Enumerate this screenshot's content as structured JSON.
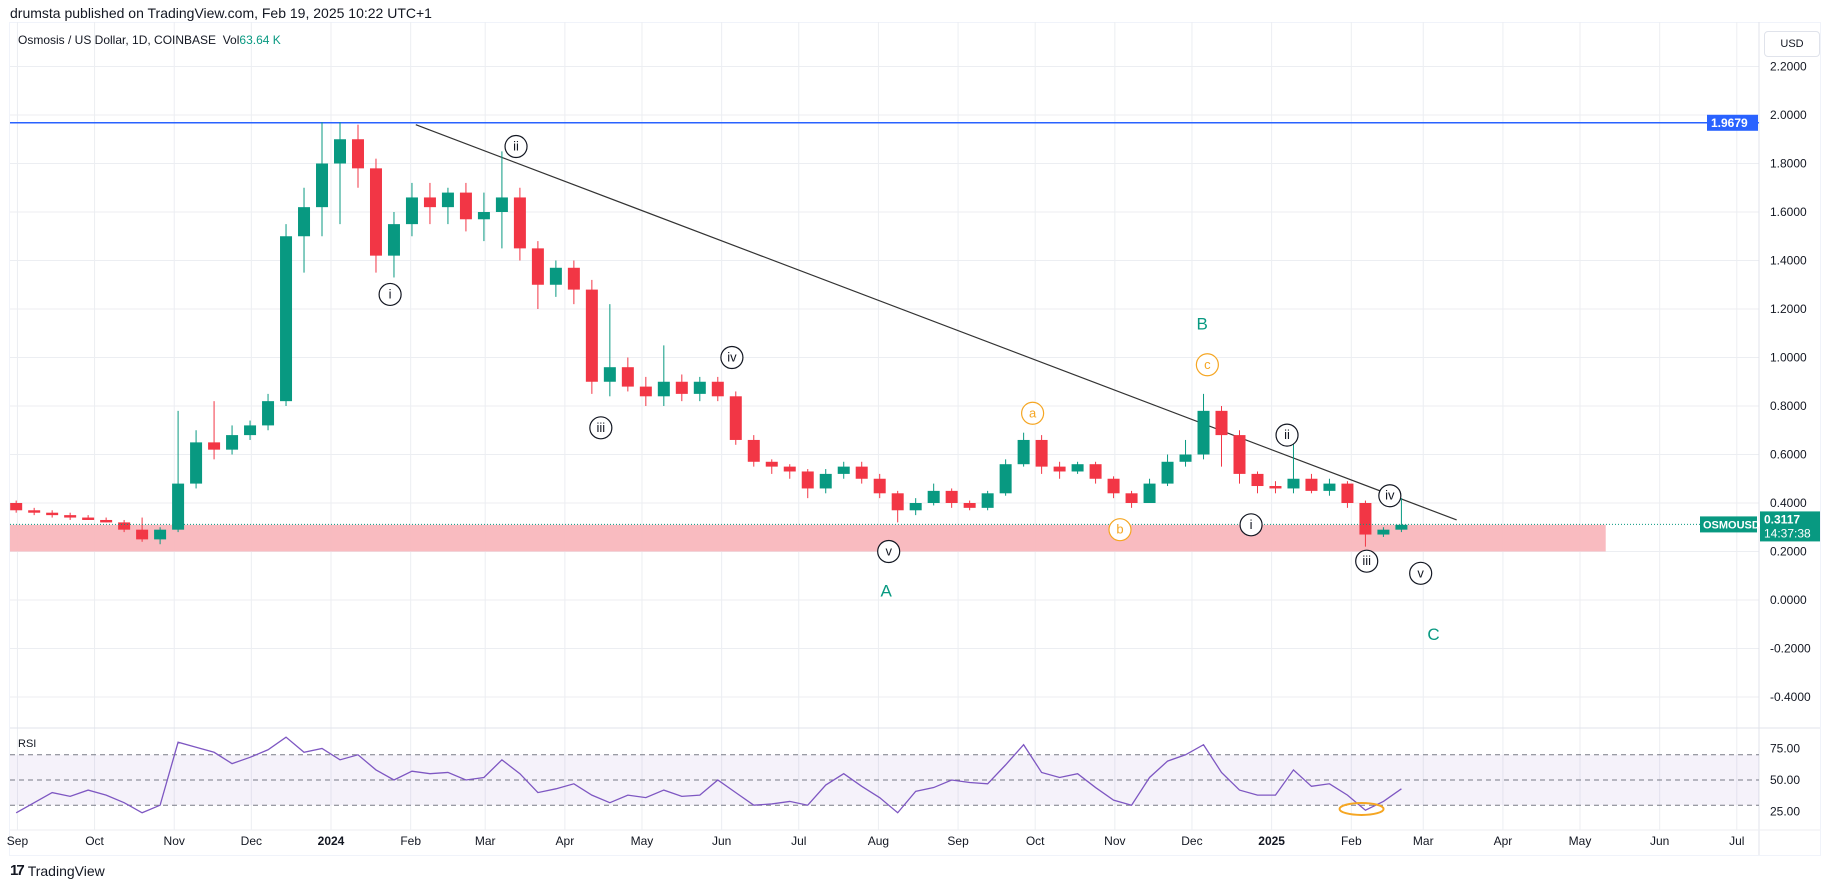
{
  "header": {
    "published": "drumsta published on TradingView.com, Feb 19, 2025 10:22 UTC+1"
  },
  "legend": {
    "symbol": "Osmosis / US Dollar, 1D, COINBASE",
    "vol_label": "Vol",
    "vol_value": "63.64 K"
  },
  "axis": {
    "currency": "USD"
  },
  "footer": {
    "brand": "TradingView"
  },
  "colors": {
    "up": "#089981",
    "down": "#f23645",
    "hline": "#2962ff",
    "rsi": "#7e57c2",
    "zone": "#f9b7bd",
    "wave_black": "#131722",
    "wave_orange": "#f5a623",
    "wave_green": "#089981"
  },
  "chart_data": [
    {
      "type": "candlestick",
      "symbol_tag": "OSMOUSD",
      "last_price": "0.3117",
      "countdown": "14:37:38",
      "ylim": [
        -0.5,
        2.3
      ],
      "y_ticks": [
        "2.2000",
        "2.0000",
        "1.8000",
        "1.6000",
        "1.4000",
        "1.2000",
        "1.0000",
        "0.8000",
        "0.6000",
        "0.4000",
        "0.2000",
        "0.0000",
        "-0.2000",
        "-0.4000"
      ],
      "x_ticks": [
        {
          "label": "Sep",
          "date": "2023-09-01"
        },
        {
          "label": "Oct",
          "date": "2023-10-01"
        },
        {
          "label": "Nov",
          "date": "2023-11-01"
        },
        {
          "label": "Dec",
          "date": "2023-12-01"
        },
        {
          "label": "2024",
          "date": "2024-01-01",
          "bold": true
        },
        {
          "label": "Feb",
          "date": "2024-02-01"
        },
        {
          "label": "Mar",
          "date": "2024-03-01"
        },
        {
          "label": "Apr",
          "date": "2024-04-01"
        },
        {
          "label": "May",
          "date": "2024-05-01"
        },
        {
          "label": "Jun",
          "date": "2024-06-01"
        },
        {
          "label": "Jul",
          "date": "2024-07-01"
        },
        {
          "label": "Aug",
          "date": "2024-08-01"
        },
        {
          "label": "Sep",
          "date": "2024-09-01"
        },
        {
          "label": "Oct",
          "date": "2024-10-01"
        },
        {
          "label": "Nov",
          "date": "2024-11-01"
        },
        {
          "label": "Dec",
          "date": "2024-12-01"
        },
        {
          "label": "2025",
          "date": "2025-01-01",
          "bold": true
        },
        {
          "label": "Feb",
          "date": "2025-02-01"
        },
        {
          "label": "Mar",
          "date": "2025-03-01"
        },
        {
          "label": "Apr",
          "date": "2025-04-01"
        },
        {
          "label": "May",
          "date": "2025-05-01"
        },
        {
          "label": "Jun",
          "date": "2025-06-01"
        },
        {
          "label": "Jul",
          "date": "2025-07-01"
        }
      ],
      "horizontal_line": {
        "value": 1.9679,
        "label": "1.9679"
      },
      "support_zone": {
        "low": 0.2,
        "high": 0.31,
        "end": "2025-05-11"
      },
      "trendline": {
        "from": [
          "2024-02-03",
          1.96
        ],
        "to": [
          "2025-03-14",
          0.33
        ]
      },
      "candles_ohlc": [
        [
          "2023-08-28",
          0.4,
          0.41,
          0.36,
          0.37
        ],
        [
          "2023-09-04",
          0.37,
          0.38,
          0.35,
          0.36
        ],
        [
          "2023-09-11",
          0.36,
          0.37,
          0.34,
          0.35
        ],
        [
          "2023-09-18",
          0.35,
          0.36,
          0.33,
          0.34
        ],
        [
          "2023-09-25",
          0.34,
          0.35,
          0.33,
          0.33
        ],
        [
          "2023-10-02",
          0.33,
          0.34,
          0.32,
          0.32
        ],
        [
          "2023-10-09",
          0.32,
          0.33,
          0.28,
          0.29
        ],
        [
          "2023-10-16",
          0.29,
          0.34,
          0.24,
          0.25
        ],
        [
          "2023-10-23",
          0.25,
          0.3,
          0.23,
          0.29
        ],
        [
          "2023-10-30",
          0.29,
          0.78,
          0.28,
          0.48
        ],
        [
          "2023-11-06",
          0.48,
          0.7,
          0.46,
          0.65
        ],
        [
          "2023-11-13",
          0.65,
          0.82,
          0.58,
          0.62
        ],
        [
          "2023-11-20",
          0.62,
          0.72,
          0.6,
          0.68
        ],
        [
          "2023-11-27",
          0.68,
          0.74,
          0.66,
          0.72
        ],
        [
          "2023-12-04",
          0.72,
          0.85,
          0.7,
          0.82
        ],
        [
          "2023-12-11",
          0.82,
          1.55,
          0.8,
          1.5
        ],
        [
          "2023-12-18",
          1.5,
          1.7,
          1.35,
          1.62
        ],
        [
          "2023-12-25",
          1.62,
          1.97,
          1.5,
          1.8
        ],
        [
          "2024-01-01",
          1.8,
          1.97,
          1.55,
          1.9
        ],
        [
          "2024-01-08",
          1.9,
          1.96,
          1.7,
          1.78
        ],
        [
          "2024-01-15",
          1.78,
          1.82,
          1.35,
          1.42
        ],
        [
          "2024-01-22",
          1.42,
          1.6,
          1.33,
          1.55
        ],
        [
          "2024-01-29",
          1.55,
          1.72,
          1.5,
          1.66
        ],
        [
          "2024-02-05",
          1.66,
          1.72,
          1.55,
          1.62
        ],
        [
          "2024-02-12",
          1.62,
          1.7,
          1.55,
          1.68
        ],
        [
          "2024-02-19",
          1.68,
          1.72,
          1.52,
          1.57
        ],
        [
          "2024-02-26",
          1.57,
          1.68,
          1.48,
          1.6
        ],
        [
          "2024-03-04",
          1.6,
          1.85,
          1.45,
          1.66
        ],
        [
          "2024-03-11",
          1.66,
          1.7,
          1.4,
          1.45
        ],
        [
          "2024-03-18",
          1.45,
          1.48,
          1.2,
          1.3
        ],
        [
          "2024-03-25",
          1.3,
          1.4,
          1.25,
          1.37
        ],
        [
          "2024-04-01",
          1.37,
          1.4,
          1.22,
          1.28
        ],
        [
          "2024-04-08",
          1.28,
          1.32,
          0.85,
          0.9
        ],
        [
          "2024-04-15",
          0.9,
          1.22,
          0.84,
          0.96
        ],
        [
          "2024-04-22",
          0.96,
          1.0,
          0.86,
          0.88
        ],
        [
          "2024-04-29",
          0.88,
          0.92,
          0.8,
          0.84
        ],
        [
          "2024-05-06",
          0.84,
          1.05,
          0.8,
          0.9
        ],
        [
          "2024-05-13",
          0.9,
          0.93,
          0.82,
          0.85
        ],
        [
          "2024-05-20",
          0.85,
          0.92,
          0.82,
          0.9
        ],
        [
          "2024-05-27",
          0.9,
          0.92,
          0.82,
          0.84
        ],
        [
          "2024-06-03",
          0.84,
          0.86,
          0.64,
          0.66
        ],
        [
          "2024-06-10",
          0.66,
          0.68,
          0.55,
          0.57
        ],
        [
          "2024-06-17",
          0.57,
          0.58,
          0.52,
          0.55
        ],
        [
          "2024-06-24",
          0.55,
          0.56,
          0.5,
          0.53
        ],
        [
          "2024-07-01",
          0.53,
          0.54,
          0.42,
          0.46
        ],
        [
          "2024-07-08",
          0.46,
          0.54,
          0.44,
          0.52
        ],
        [
          "2024-07-15",
          0.52,
          0.57,
          0.5,
          0.55
        ],
        [
          "2024-07-22",
          0.55,
          0.57,
          0.48,
          0.5
        ],
        [
          "2024-07-29",
          0.5,
          0.52,
          0.42,
          0.44
        ],
        [
          "2024-08-05",
          0.44,
          0.45,
          0.32,
          0.37
        ],
        [
          "2024-08-12",
          0.37,
          0.42,
          0.35,
          0.4
        ],
        [
          "2024-08-19",
          0.4,
          0.48,
          0.39,
          0.45
        ],
        [
          "2024-08-26",
          0.45,
          0.46,
          0.38,
          0.4
        ],
        [
          "2024-09-02",
          0.4,
          0.41,
          0.37,
          0.38
        ],
        [
          "2024-09-09",
          0.38,
          0.45,
          0.37,
          0.44
        ],
        [
          "2024-09-16",
          0.44,
          0.58,
          0.43,
          0.56
        ],
        [
          "2024-09-23",
          0.56,
          0.69,
          0.55,
          0.66
        ],
        [
          "2024-09-30",
          0.66,
          0.68,
          0.52,
          0.55
        ],
        [
          "2024-10-07",
          0.55,
          0.57,
          0.5,
          0.53
        ],
        [
          "2024-10-14",
          0.53,
          0.57,
          0.52,
          0.56
        ],
        [
          "2024-10-21",
          0.56,
          0.57,
          0.48,
          0.5
        ],
        [
          "2024-10-28",
          0.5,
          0.51,
          0.42,
          0.44
        ],
        [
          "2024-11-04",
          0.44,
          0.45,
          0.38,
          0.4
        ],
        [
          "2024-11-11",
          0.4,
          0.5,
          0.4,
          0.48
        ],
        [
          "2024-11-18",
          0.48,
          0.6,
          0.47,
          0.57
        ],
        [
          "2024-11-25",
          0.57,
          0.66,
          0.55,
          0.6
        ],
        [
          "2024-12-02",
          0.6,
          0.85,
          0.58,
          0.78
        ],
        [
          "2024-12-09",
          0.78,
          0.8,
          0.55,
          0.68
        ],
        [
          "2024-12-16",
          0.68,
          0.7,
          0.48,
          0.52
        ],
        [
          "2024-12-23",
          0.52,
          0.53,
          0.44,
          0.47
        ],
        [
          "2024-12-30",
          0.47,
          0.49,
          0.44,
          0.46
        ],
        [
          "2025-01-06",
          0.46,
          0.65,
          0.44,
          0.5
        ],
        [
          "2025-01-13",
          0.5,
          0.52,
          0.44,
          0.45
        ],
        [
          "2025-01-20",
          0.45,
          0.5,
          0.43,
          0.48
        ],
        [
          "2025-01-27",
          0.48,
          0.49,
          0.38,
          0.4
        ],
        [
          "2025-02-03",
          0.4,
          0.41,
          0.22,
          0.27
        ],
        [
          "2025-02-10",
          0.27,
          0.3,
          0.26,
          0.29
        ],
        [
          "2025-02-17",
          0.29,
          0.42,
          0.28,
          0.31
        ]
      ],
      "annotations": [
        {
          "text": "i",
          "date": "2024-01-24",
          "price": 1.26,
          "style": "circle",
          "color": "wave_black"
        },
        {
          "text": "ii",
          "date": "2024-03-13",
          "price": 1.87,
          "style": "circle",
          "color": "wave_black"
        },
        {
          "text": "iii",
          "date": "2024-04-15",
          "price": 0.71,
          "style": "circle",
          "color": "wave_black"
        },
        {
          "text": "iv",
          "date": "2024-06-05",
          "price": 1.0,
          "style": "circle",
          "color": "wave_black"
        },
        {
          "text": "v",
          "date": "2024-08-05",
          "price": 0.2,
          "style": "circle",
          "color": "wave_black"
        },
        {
          "text": "A",
          "date": "2024-08-04",
          "price": 0.04,
          "style": "letter",
          "color": "wave_green"
        },
        {
          "text": "a",
          "date": "2024-09-30",
          "price": 0.77,
          "style": "circle",
          "color": "wave_orange"
        },
        {
          "text": "b",
          "date": "2024-11-03",
          "price": 0.29,
          "style": "circle",
          "color": "wave_orange"
        },
        {
          "text": "c",
          "date": "2024-12-07",
          "price": 0.97,
          "style": "circle",
          "color": "wave_orange"
        },
        {
          "text": "B",
          "date": "2024-12-05",
          "price": 1.14,
          "style": "letter",
          "color": "wave_green"
        },
        {
          "text": "i",
          "date": "2024-12-24",
          "price": 0.31,
          "style": "circle",
          "color": "wave_black"
        },
        {
          "text": "ii",
          "date": "2025-01-07",
          "price": 0.68,
          "style": "circle",
          "color": "wave_black"
        },
        {
          "text": "iii",
          "date": "2025-02-07",
          "price": 0.16,
          "style": "circle",
          "color": "wave_black"
        },
        {
          "text": "iv",
          "date": "2025-02-16",
          "price": 0.43,
          "style": "circle",
          "color": "wave_black"
        },
        {
          "text": "v",
          "date": "2025-02-28",
          "price": 0.11,
          "style": "circle",
          "color": "wave_black"
        },
        {
          "text": "C",
          "date": "2025-03-05",
          "price": -0.14,
          "style": "letter",
          "color": "wave_green"
        }
      ]
    },
    {
      "type": "line",
      "title": "RSI",
      "ylim": [
        15,
        90
      ],
      "y_ticks": [
        "75.00",
        "50.00",
        "25.00"
      ],
      "bands": {
        "upper": 70,
        "middle": 50,
        "lower": 30
      },
      "highlight_ellipse": {
        "date": "2025-02-05",
        "value": 27
      },
      "values": [
        [
          "2023-08-28",
          24
        ],
        [
          "2023-09-04",
          32
        ],
        [
          "2023-09-11",
          40
        ],
        [
          "2023-09-18",
          37
        ],
        [
          "2023-09-25",
          42
        ],
        [
          "2023-10-02",
          38
        ],
        [
          "2023-10-09",
          32
        ],
        [
          "2023-10-16",
          24
        ],
        [
          "2023-10-23",
          30
        ],
        [
          "2023-10-30",
          80
        ],
        [
          "2023-11-06",
          76
        ],
        [
          "2023-11-13",
          72
        ],
        [
          "2023-11-20",
          63
        ],
        [
          "2023-11-27",
          68
        ],
        [
          "2023-12-04",
          74
        ],
        [
          "2023-12-11",
          84
        ],
        [
          "2023-12-18",
          72
        ],
        [
          "2023-12-25",
          75
        ],
        [
          "2024-01-01",
          66
        ],
        [
          "2024-01-08",
          70
        ],
        [
          "2024-01-15",
          58
        ],
        [
          "2024-01-22",
          50
        ],
        [
          "2024-01-29",
          57
        ],
        [
          "2024-02-05",
          55
        ],
        [
          "2024-02-12",
          56
        ],
        [
          "2024-02-19",
          50
        ],
        [
          "2024-02-26",
          52
        ],
        [
          "2024-03-04",
          66
        ],
        [
          "2024-03-11",
          55
        ],
        [
          "2024-03-18",
          40
        ],
        [
          "2024-03-25",
          43
        ],
        [
          "2024-04-01",
          47
        ],
        [
          "2024-04-08",
          38
        ],
        [
          "2024-04-15",
          32
        ],
        [
          "2024-04-22",
          38
        ],
        [
          "2024-04-29",
          36
        ],
        [
          "2024-05-06",
          42
        ],
        [
          "2024-05-13",
          37
        ],
        [
          "2024-05-20",
          38
        ],
        [
          "2024-05-27",
          50
        ],
        [
          "2024-06-03",
          40
        ],
        [
          "2024-06-10",
          30
        ],
        [
          "2024-06-17",
          31
        ],
        [
          "2024-06-24",
          33
        ],
        [
          "2024-07-01",
          30
        ],
        [
          "2024-07-08",
          46
        ],
        [
          "2024-07-15",
          55
        ],
        [
          "2024-07-22",
          45
        ],
        [
          "2024-07-29",
          36
        ],
        [
          "2024-08-05",
          24
        ],
        [
          "2024-08-12",
          41
        ],
        [
          "2024-08-19",
          44
        ],
        [
          "2024-08-26",
          50
        ],
        [
          "2024-09-02",
          48
        ],
        [
          "2024-09-09",
          47
        ],
        [
          "2024-09-16",
          62
        ],
        [
          "2024-09-23",
          78
        ],
        [
          "2024-09-30",
          56
        ],
        [
          "2024-10-07",
          52
        ],
        [
          "2024-10-14",
          55
        ],
        [
          "2024-10-21",
          44
        ],
        [
          "2024-10-28",
          34
        ],
        [
          "2024-11-04",
          30
        ],
        [
          "2024-11-11",
          52
        ],
        [
          "2024-11-18",
          65
        ],
        [
          "2024-11-25",
          70
        ],
        [
          "2024-12-02",
          78
        ],
        [
          "2024-12-09",
          56
        ],
        [
          "2024-12-16",
          42
        ],
        [
          "2024-12-23",
          38
        ],
        [
          "2024-12-30",
          38
        ],
        [
          "2025-01-06",
          58
        ],
        [
          "2025-01-13",
          45
        ],
        [
          "2025-01-20",
          47
        ],
        [
          "2025-01-27",
          38
        ],
        [
          "2025-02-03",
          26
        ],
        [
          "2025-02-10",
          33
        ],
        [
          "2025-02-17",
          43
        ]
      ]
    }
  ]
}
